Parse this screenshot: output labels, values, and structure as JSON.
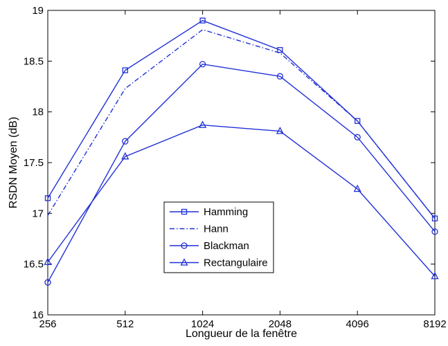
{
  "chart_data": {
    "type": "line",
    "title": "",
    "xlabel": "Longueur de la fenêtre",
    "ylabel": "RSDN Moyen (dB)",
    "x": [
      "256",
      "512",
      "1024",
      "2048",
      "4096",
      "8192"
    ],
    "ylim": [
      16,
      19
    ],
    "yticks": [
      "16",
      "16.5",
      "17",
      "17.5",
      "18",
      "18.5",
      "19"
    ],
    "grid": false,
    "legend_position": "lower-center",
    "color": "#1f2fd6",
    "series": [
      {
        "name": "Hamming",
        "marker": "square",
        "dash": "solid",
        "values": [
          17.15,
          18.41,
          18.9,
          18.61,
          17.91,
          16.95
        ]
      },
      {
        "name": "Hann",
        "marker": "none",
        "dash": "dashdot",
        "values": [
          16.98,
          18.23,
          18.81,
          18.58,
          17.91,
          16.95
        ]
      },
      {
        "name": "Blackman",
        "marker": "circle",
        "dash": "solid",
        "values": [
          16.32,
          17.71,
          18.47,
          18.35,
          17.75,
          16.82
        ]
      },
      {
        "name": "Rectangulaire",
        "marker": "triangle",
        "dash": "solid",
        "values": [
          16.52,
          17.56,
          17.87,
          17.81,
          17.24,
          16.38
        ]
      }
    ]
  }
}
